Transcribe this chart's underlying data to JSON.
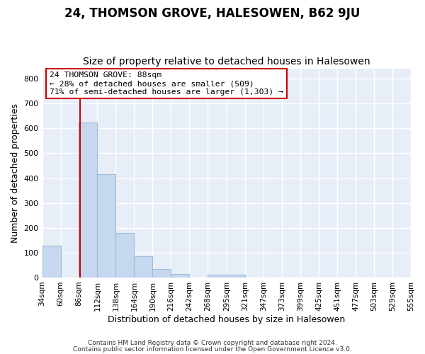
{
  "title": "24, THOMSON GROVE, HALESOWEN, B62 9JU",
  "subtitle": "Size of property relative to detached houses in Halesowen",
  "xlabel": "Distribution of detached houses by size in Halesowen",
  "ylabel": "Number of detached properties",
  "bin_edges": [
    34,
    60,
    86,
    112,
    138,
    164,
    190,
    216,
    242,
    268,
    295,
    321,
    347,
    373,
    399,
    425,
    451,
    477,
    503,
    529,
    555
  ],
  "counts": [
    127,
    0,
    625,
    415,
    178,
    85,
    35,
    14,
    0,
    10,
    10,
    0,
    0,
    0,
    0,
    0,
    0,
    0,
    0,
    0
  ],
  "bar_color": "#c5d8f0",
  "bar_edgecolor": "#a0bcd8",
  "vline_x": 88,
  "vline_color": "#cc0000",
  "annotation_text": "24 THOMSON GROVE: 88sqm\n← 28% of detached houses are smaller (509)\n71% of semi-detached houses are larger (1,303) →",
  "annotation_box_edgecolor": "#cc0000",
  "ylim": [
    0,
    840
  ],
  "yticks": [
    0,
    100,
    200,
    300,
    400,
    500,
    600,
    700,
    800
  ],
  "tick_labels": [
    "34sqm",
    "60sqm",
    "86sqm",
    "112sqm",
    "138sqm",
    "164sqm",
    "190sqm",
    "216sqm",
    "242sqm",
    "268sqm",
    "295sqm",
    "321sqm",
    "347sqm",
    "373sqm",
    "399sqm",
    "425sqm",
    "451sqm",
    "477sqm",
    "503sqm",
    "529sqm",
    "555sqm"
  ],
  "footer1": "Contains HM Land Registry data © Crown copyright and database right 2024.",
  "footer2": "Contains public sector information licensed under the Open Government Licence v3.0.",
  "fig_bg_color": "#ffffff",
  "plot_bg_color": "#e8eef8",
  "title_fontsize": 12,
  "subtitle_fontsize": 10
}
